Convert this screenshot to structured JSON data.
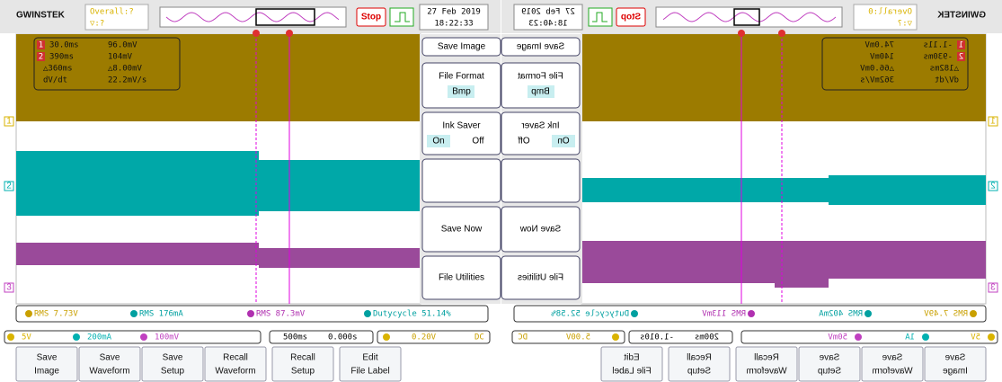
{
  "left": {
    "brand": "GWINSTEK",
    "trigger_status": "Overall:?",
    "trigger_sub": "▽:?",
    "run_state": "Stop",
    "date": "27 Feb 2019",
    "time": "18:22:33",
    "cursors": [
      [
        "1",
        "30.0ms",
        "96.0mV"
      ],
      [
        "2",
        "390ms",
        "104mV"
      ],
      [
        "△360ms",
        "△8.00mV"
      ],
      [
        "dV/dt",
        "22.2mV/s"
      ]
    ],
    "channel_labels": [
      "1",
      "2",
      "3"
    ],
    "menu": {
      "save_image": "Save Image",
      "file_format": "File Format",
      "file_format_value": "Bmp",
      "ink_saver": "Ink Saver",
      "ink_saver_on": "On",
      "ink_saver_off": "Off",
      "save_now": "Save Now",
      "file_utilities": "File Utilities"
    },
    "measurements": [
      "RMS 7.73V",
      "RMS 176mA",
      "RMS 87.3mV",
      "Dutycycle 51.14%"
    ],
    "channel_scales": [
      "5V",
      "200mA",
      "100mV"
    ],
    "timebase": "500ms",
    "position": "0.000s",
    "trigger_level": "0.20V",
    "coupling": "DC",
    "softkeys": [
      [
        "Save",
        "Image"
      ],
      [
        "Save",
        "Waveform"
      ],
      [
        "Save",
        "Setup"
      ],
      [
        "Recall",
        "Waveform"
      ],
      [
        "Recall",
        "Setup"
      ],
      [
        "Edit",
        "File Label"
      ]
    ]
  },
  "right": {
    "brand": "GWINSTEK",
    "trigger_status": "Overall:0",
    "trigger_sub": "▽:?",
    "run_state": "Stop",
    "date": "27 Feb 2019",
    "time": "18:40:23",
    "cursors": [
      [
        "1",
        "-1.11s",
        "74.0mV"
      ],
      [
        "2",
        "-930ms",
        "140mV"
      ],
      [
        "△182ms",
        "△66.0mV"
      ],
      [
        "dV/dt",
        "362mV/s"
      ]
    ],
    "channel_labels": [
      "1",
      "2",
      "3"
    ],
    "menu": {
      "save_image": "Save Image",
      "file_format": "File Format",
      "file_format_value": "Bmp",
      "ink_saver": "Ink Saver",
      "ink_saver_on": "On",
      "ink_saver_off": "Off",
      "save_now": "Save Now",
      "file_utilities": "File Utilities"
    },
    "measurements": [
      "RMS 7.49V",
      "RMS 402mA",
      "RMS 113mV",
      "Dutycycle 52.58%"
    ],
    "channel_scales": [
      "5V",
      "1A",
      "50mV"
    ],
    "timebase": "200ms",
    "position": "-1.010s",
    "trigger_level": "5.00V",
    "coupling": "DC",
    "softkeys": [
      [
        "Save",
        "Image"
      ],
      [
        "Save",
        "Waveform"
      ],
      [
        "Save",
        "Setup"
      ],
      [
        "Recall",
        "Waveform"
      ],
      [
        "Recall",
        "Setup"
      ],
      [
        "Edit",
        "File Label"
      ]
    ]
  }
}
